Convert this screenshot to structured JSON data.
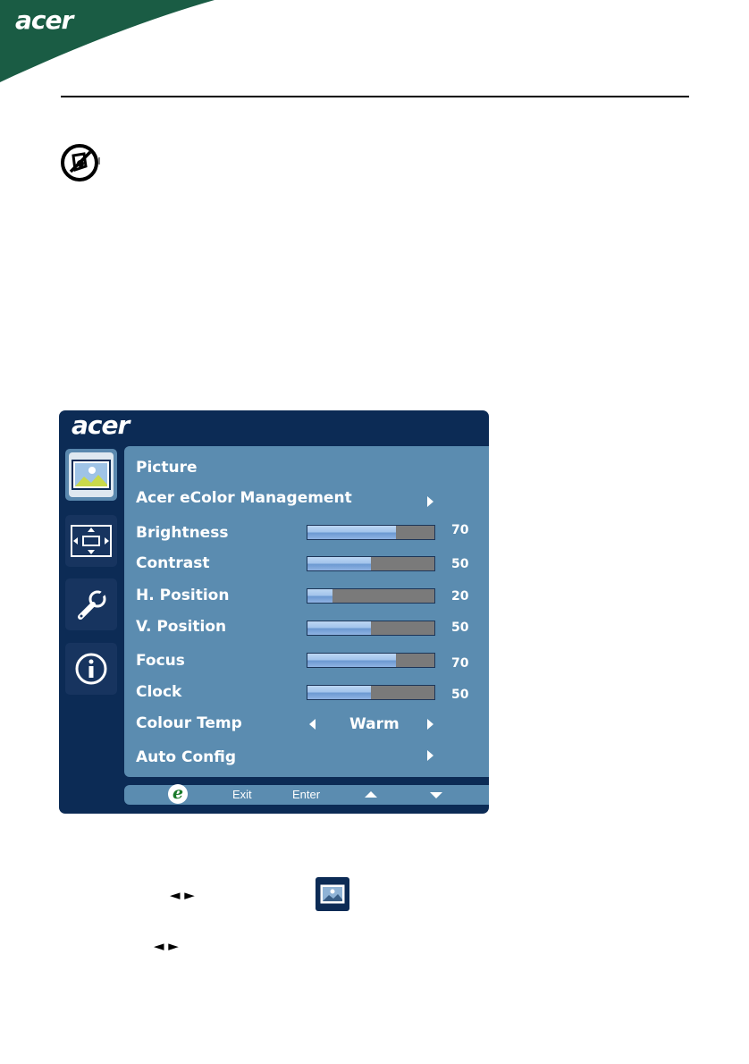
{
  "header": {
    "brand": "acer",
    "accent_color": "#1a5c44",
    "note_icon": "acer-note-icon"
  },
  "osd": {
    "brand": "acer",
    "side_icons": [
      "picture-icon",
      "position-icon",
      "settings-wrench-icon",
      "info-icon"
    ],
    "menu_title": "Picture",
    "ecolor_label": "Acer eColor Management",
    "sliders": [
      {
        "label": "Brightness",
        "value": 70,
        "value_text": "70"
      },
      {
        "label": "Contrast",
        "value": 50,
        "value_text": "50"
      },
      {
        "label": "H. Position",
        "value": 20,
        "value_text": "20"
      },
      {
        "label": "V. Position",
        "value": 50,
        "value_text": "50"
      },
      {
        "label": "Focus",
        "value": 70,
        "value_text": "70"
      },
      {
        "label": "Clock",
        "value": 50,
        "value_text": "50"
      }
    ],
    "colour_temp": {
      "label": "Colour Temp",
      "value": "Warm"
    },
    "auto_config": {
      "label": "Auto Config"
    },
    "footer": {
      "e_label": "e",
      "exit": "Exit",
      "enter": "Enter"
    },
    "colors": {
      "panel": "#0c2b55",
      "menu": "#5b8cb0",
      "bar_track": "#7a7a7a"
    }
  },
  "bottom": {
    "row1_glyphs": "◄ ►",
    "row2_glyphs": "◄ ►",
    "picture_icon": "picture-icon"
  }
}
